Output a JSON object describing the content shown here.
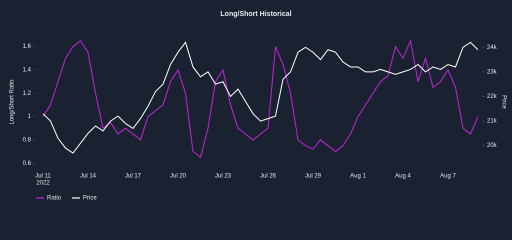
{
  "chart_data": {
    "type": "line",
    "title": "Long/Short Historical",
    "y_label": "Long/Short Ratio",
    "y2_label": "Price",
    "x_sublabel": "2022",
    "categories": [
      "Jul 11",
      null,
      null,
      null,
      null,
      null,
      "Jul 14",
      null,
      null,
      null,
      null,
      null,
      "Jul 17",
      null,
      null,
      null,
      null,
      null,
      "Jul 20",
      null,
      null,
      null,
      null,
      null,
      "Jul 23",
      null,
      null,
      null,
      null,
      null,
      "Jul 26",
      null,
      null,
      null,
      null,
      null,
      "Jul 29",
      null,
      null,
      null,
      null,
      null,
      "Aug 1",
      null,
      null,
      null,
      null,
      null,
      "Aug 4",
      null,
      null,
      null,
      null,
      null,
      "Aug 7",
      null,
      null,
      null,
      null
    ],
    "series": [
      {
        "name": "Ratio",
        "color": "#c026d3",
        "values": [
          1.0,
          1.1,
          1.3,
          1.5,
          1.6,
          1.65,
          1.55,
          1.2,
          0.9,
          0.95,
          0.85,
          0.9,
          0.85,
          0.8,
          1.0,
          1.05,
          1.1,
          1.3,
          1.4,
          1.2,
          0.7,
          0.65,
          0.9,
          1.3,
          1.4,
          1.1,
          0.9,
          0.85,
          0.8,
          0.85,
          0.9,
          1.6,
          1.45,
          1.2,
          0.8,
          0.75,
          0.72,
          0.8,
          0.75,
          0.7,
          0.75,
          0.85,
          1.0,
          1.1,
          1.2,
          1.3,
          1.35,
          1.6,
          1.5,
          1.65,
          1.3,
          1.5,
          1.25,
          1.3,
          1.4,
          1.25,
          0.9,
          0.85,
          1.0
        ]
      },
      {
        "name": "Price",
        "color": "#ffffff",
        "axis": "y2",
        "values": [
          21300,
          21000,
          20300,
          19900,
          19700,
          20100,
          20500,
          20800,
          20600,
          21000,
          21200,
          20900,
          20700,
          21100,
          21600,
          22200,
          22500,
          23300,
          23800,
          24200,
          23200,
          22800,
          23000,
          22500,
          22600,
          22000,
          22300,
          21800,
          21300,
          21000,
          21100,
          21200,
          22700,
          23000,
          23800,
          24000,
          23800,
          23500,
          23900,
          23800,
          23400,
          23200,
          23200,
          23000,
          23000,
          23100,
          23000,
          22900,
          23000,
          23100,
          23300,
          23000,
          23200,
          23100,
          23300,
          23200,
          24000,
          24200,
          23900
        ]
      }
    ],
    "ylim": [
      0.55,
      1.7
    ],
    "yticks": [
      0.6,
      0.8,
      {
        "value": 1.0,
        "label": "1"
      },
      1.2,
      1.4,
      1.6
    ],
    "y2lim": [
      19050,
      24500
    ],
    "y2ticks": [
      {
        "value": 20000,
        "label": "20k"
      },
      {
        "value": 21000,
        "label": "21k"
      },
      {
        "value": 22000,
        "label": "22k"
      },
      {
        "value": 23000,
        "label": "23k"
      },
      {
        "value": 24000,
        "label": "24k"
      }
    ]
  }
}
